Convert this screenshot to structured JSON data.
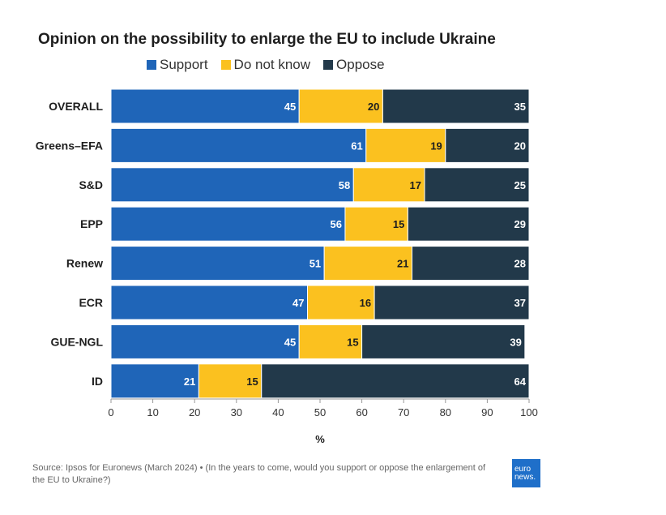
{
  "chart_data": {
    "type": "bar",
    "orientation": "horizontal",
    "stacked": true,
    "title": "Opinion on the possibility to enlarge the EU to include Ukraine",
    "categories": [
      "OVERALL",
      "Greens–EFA",
      "S&D",
      "EPP",
      "Renew",
      "ECR",
      "GUE-NGL",
      "ID"
    ],
    "series": [
      {
        "name": "Support",
        "color": "#1f65b8",
        "label_color": "#ffffff",
        "values": [
          45,
          61,
          58,
          56,
          51,
          47,
          45,
          21
        ]
      },
      {
        "name": "Do not know",
        "color": "#fbc11f",
        "label_color": "#1e1e1e",
        "values": [
          20,
          19,
          17,
          15,
          21,
          16,
          15,
          15
        ]
      },
      {
        "name": "Oppose",
        "color": "#22394a",
        "label_color": "#ffffff",
        "values": [
          35,
          20,
          25,
          29,
          28,
          37,
          39,
          64
        ]
      }
    ],
    "xlabel": "%",
    "xlim": [
      0,
      100
    ],
    "xticks": [
      0,
      10,
      20,
      30,
      40,
      50,
      60,
      70,
      80,
      90,
      100
    ],
    "legend_position": "top"
  },
  "footer": {
    "source": "Source: Ipsos for Euronews (March 2024) • (In the years to come, would you support or oppose the enlargement of the EU to Ukraine?)",
    "logo_line1": "euro",
    "logo_line2": "news."
  }
}
